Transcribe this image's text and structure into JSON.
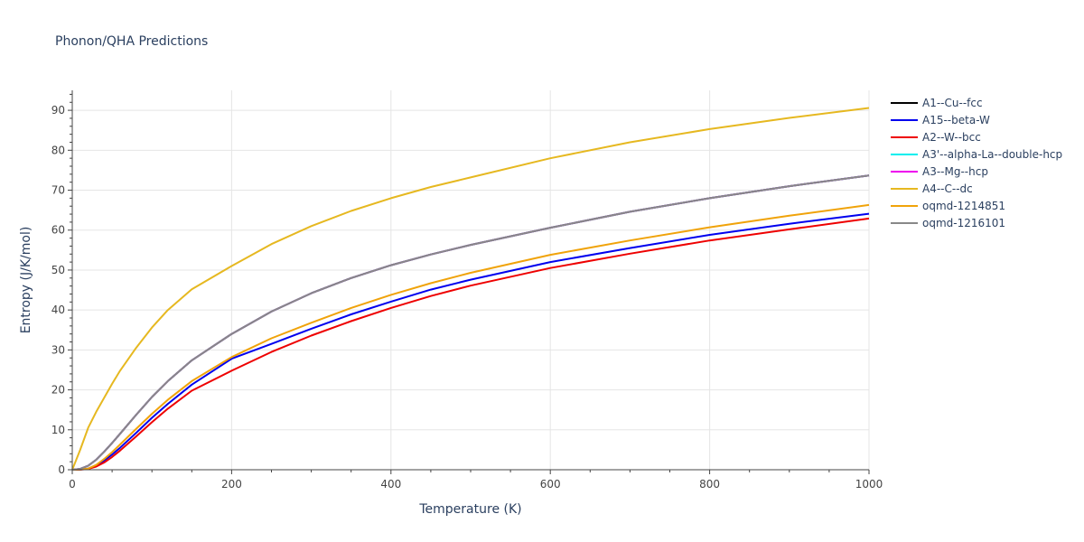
{
  "chart_data": {
    "type": "line",
    "title": "Phonon/QHA Predictions",
    "xlabel": "Temperature (K)",
    "ylabel": "Entropy (J/K/mol)",
    "xlim": [
      0,
      1000
    ],
    "ylim": [
      0,
      95
    ],
    "xticks": [
      0,
      200,
      400,
      600,
      800,
      1000
    ],
    "yticks": [
      0,
      10,
      20,
      30,
      40,
      50,
      60,
      70,
      80,
      90
    ],
    "grid": true,
    "legend_position": "right",
    "x": [
      0,
      10,
      20,
      30,
      40,
      50,
      60,
      80,
      100,
      120,
      150,
      200,
      250,
      300,
      350,
      400,
      450,
      500,
      600,
      700,
      800,
      900,
      1000
    ],
    "series": [
      {
        "name": "A1--Cu--fcc",
        "color": "#000000",
        "values": [
          0,
          0.2,
          1.0,
          2.5,
          4.5,
          6.7,
          9.0,
          13.7,
          18.2,
          22.2,
          27.4,
          34.0,
          39.6,
          44.2,
          48.0,
          51.2,
          53.9,
          56.3,
          60.6,
          64.6,
          68.0,
          71.0,
          73.7
        ]
      },
      {
        "name": "A15--beta-W",
        "color": "#0000ee",
        "values": [
          0,
          0.05,
          0.3,
          1.0,
          2.3,
          3.8,
          5.5,
          9.2,
          13.0,
          16.5,
          21.3,
          27.8,
          31.5,
          35.3,
          38.9,
          42.1,
          45.1,
          47.6,
          52.0,
          55.5,
          58.8,
          61.6,
          64.1
        ]
      },
      {
        "name": "A2--W--bcc",
        "color": "#ee0000",
        "values": [
          0,
          0.03,
          0.2,
          0.8,
          1.8,
          3.2,
          4.8,
          8.3,
          11.9,
          15.3,
          19.8,
          24.8,
          29.5,
          33.6,
          37.2,
          40.5,
          43.5,
          46.1,
          50.5,
          54.1,
          57.4,
          60.2,
          62.9
        ]
      },
      {
        "name": "A3'--alpha-La--double-hcp",
        "color": "#00eeee",
        "values": [
          0,
          0.2,
          1.0,
          2.5,
          4.5,
          6.7,
          9.0,
          13.7,
          18.2,
          22.2,
          27.4,
          34.0,
          39.6,
          44.2,
          48.0,
          51.2,
          53.9,
          56.3,
          60.6,
          64.6,
          68.0,
          71.0,
          73.7
        ]
      },
      {
        "name": "A3--Mg--hcp",
        "color": "#ee00ee",
        "values": [
          0,
          0.2,
          1.0,
          2.5,
          4.5,
          6.7,
          9.0,
          13.7,
          18.2,
          22.2,
          27.4,
          34.0,
          39.6,
          44.2,
          48.0,
          51.2,
          53.9,
          56.3,
          60.6,
          64.6,
          68.0,
          71.0,
          73.7
        ]
      },
      {
        "name": "A4--C--dc",
        "color": "#e6b820",
        "values": [
          0,
          5.0,
          10.5,
          14.5,
          18.0,
          21.5,
          24.8,
          30.5,
          35.6,
          40.0,
          45.2,
          51.0,
          56.5,
          61.0,
          64.8,
          68.0,
          70.8,
          73.2,
          78.0,
          82.0,
          85.3,
          88.1,
          90.6
        ]
      },
      {
        "name": "oqmd-1214851",
        "color": "#f0a30a",
        "values": [
          0,
          0.04,
          0.3,
          1.2,
          2.7,
          4.4,
          6.3,
          10.2,
          14.0,
          17.5,
          22.2,
          28.2,
          32.9,
          36.8,
          40.5,
          43.8,
          46.7,
          49.3,
          53.8,
          57.4,
          60.7,
          63.6,
          66.3
        ]
      },
      {
        "name": "oqmd-1216101",
        "color": "#888888",
        "values": [
          0,
          0.2,
          1.0,
          2.5,
          4.5,
          6.7,
          9.0,
          13.7,
          18.2,
          22.2,
          27.4,
          34.0,
          39.6,
          44.2,
          48.0,
          51.2,
          53.9,
          56.3,
          60.6,
          64.6,
          68.0,
          71.0,
          73.7
        ]
      }
    ]
  }
}
